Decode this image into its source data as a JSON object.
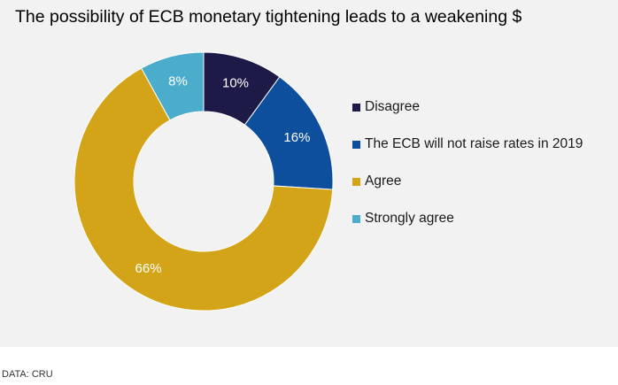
{
  "chart_data": {
    "type": "pie",
    "title": "The possibility of ECB monetary tightening leads to a weakening $",
    "donut": true,
    "legend_position": "right",
    "categories": [
      "Disagree",
      "The ECB will not raise rates in 2019",
      "Agree",
      "Strongly agree"
    ],
    "values": [
      10,
      16,
      66,
      8
    ],
    "labels": [
      "10%",
      "16%",
      "66%",
      "8%"
    ],
    "colors": [
      "#1d1a47",
      "#0d4f9c",
      "#d4a418",
      "#4baccb"
    ],
    "label_colors": [
      "#ffffff",
      "#ffffff",
      "#ffffff",
      "#ffffff"
    ]
  },
  "source": "DATA: CRU"
}
